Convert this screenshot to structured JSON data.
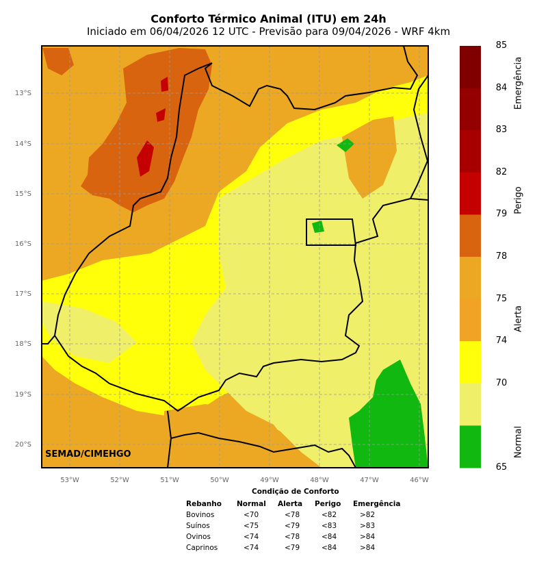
{
  "title": "Conforto Térmico Animal (ITU) em 24h",
  "subtitle": "Iniciado em 06/04/2026 12 UTC - Previsão para 09/04/2026 - WRF 4km",
  "credit": "SEMAD/CIMEHGO",
  "map": {
    "lat_labels": [
      "13°S",
      "14°S",
      "15°S",
      "16°S",
      "17°S",
      "18°S",
      "19°S",
      "20°S"
    ],
    "lon_labels": [
      "53°W",
      "52°W",
      "51°W",
      "50°W",
      "49°W",
      "48°W",
      "47°W",
      "46°W"
    ],
    "gridlines": true
  },
  "colorbar": {
    "ticks": [
      "85",
      "84",
      "83",
      "82",
      "79",
      "78",
      "75",
      "74",
      "70",
      "65"
    ],
    "colors": [
      "#800000",
      "#940000",
      "#a80000",
      "#c40000",
      "#d9640f",
      "#eca822",
      "#f0a324",
      "#ffff0a",
      "#f0ef6a",
      "#10b810"
    ],
    "groups": [
      {
        "label": "Emergência"
      },
      {
        "label": "Perigo"
      },
      {
        "label": "Alerta"
      },
      {
        "label": "Normal"
      }
    ]
  },
  "comfort_table": {
    "title": "Condição de Conforto",
    "headers": [
      "Rebanho",
      "Normal",
      "Alerta",
      "Perigo",
      "Emergência"
    ],
    "rows": [
      [
        "Bovinos",
        "<70",
        "<78",
        "<82",
        ">82"
      ],
      [
        "Suínos",
        "<75",
        "<79",
        "<83",
        ">83"
      ],
      [
        "Ovinos",
        "<74",
        "<78",
        "<84",
        ">84"
      ],
      [
        "Caprinos",
        "<74",
        "<79",
        "<84",
        ">84"
      ]
    ]
  }
}
